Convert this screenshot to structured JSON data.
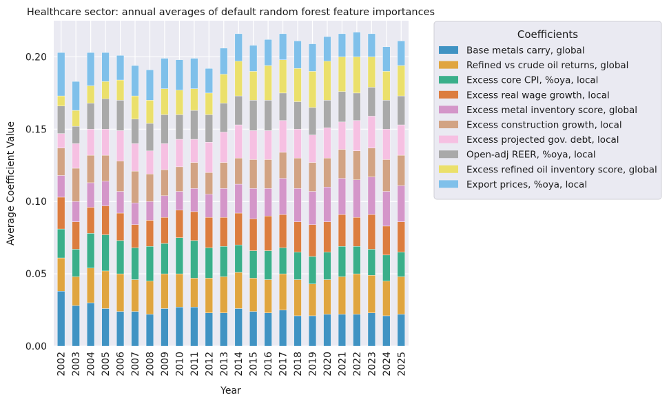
{
  "chart_data": {
    "type": "bar",
    "stacked": true,
    "title": "Healthcare sector: annual averages of default random forest feature importances",
    "xlabel": "Year",
    "ylabel": "Average Coefficient Value",
    "ylim": [
      0,
      0.225
    ],
    "yticks": [
      0.0,
      0.05,
      0.1,
      0.15,
      0.2
    ],
    "ytick_labels": [
      "0.00",
      "0.05",
      "0.10",
      "0.15",
      "0.20"
    ],
    "grid": true,
    "legend_title": "Coefficients",
    "legend_position": "outside-right",
    "categories": [
      "2002",
      "2003",
      "2004",
      "2005",
      "2006",
      "2007",
      "2008",
      "2009",
      "2010",
      "2011",
      "2012",
      "2013",
      "2014",
      "2015",
      "2016",
      "2017",
      "2018",
      "2019",
      "2020",
      "2021",
      "2022",
      "2023",
      "2024",
      "2025"
    ],
    "series": [
      {
        "name": "Base metals carry, global",
        "color": "#4093c3",
        "values": [
          0.038,
          0.028,
          0.03,
          0.026,
          0.024,
          0.024,
          0.022,
          0.026,
          0.027,
          0.027,
          0.023,
          0.023,
          0.026,
          0.024,
          0.023,
          0.025,
          0.021,
          0.021,
          0.022,
          0.022,
          0.022,
          0.023,
          0.021,
          0.022
        ]
      },
      {
        "name": "Refined vs crude oil returns, global",
        "color": "#e0a53f",
        "values": [
          0.023,
          0.02,
          0.024,
          0.026,
          0.026,
          0.022,
          0.023,
          0.024,
          0.023,
          0.02,
          0.024,
          0.025,
          0.025,
          0.023,
          0.023,
          0.025,
          0.025,
          0.022,
          0.024,
          0.026,
          0.028,
          0.026,
          0.024,
          0.026
        ]
      },
      {
        "name": "Excess core CPI, %oya, local",
        "color": "#3aaf8a",
        "values": [
          0.02,
          0.019,
          0.024,
          0.025,
          0.023,
          0.022,
          0.024,
          0.021,
          0.025,
          0.026,
          0.021,
          0.021,
          0.019,
          0.019,
          0.02,
          0.018,
          0.019,
          0.019,
          0.019,
          0.021,
          0.019,
          0.018,
          0.018,
          0.017
        ]
      },
      {
        "name": "Excess real wage growth, local",
        "color": "#dc7d3f",
        "values": [
          0.022,
          0.019,
          0.018,
          0.02,
          0.019,
          0.016,
          0.018,
          0.018,
          0.019,
          0.02,
          0.021,
          0.02,
          0.022,
          0.022,
          0.024,
          0.023,
          0.021,
          0.022,
          0.021,
          0.022,
          0.02,
          0.024,
          0.02,
          0.021
        ]
      },
      {
        "name": "Excess metal inventory score, global",
        "color": "#d496c9",
        "values": [
          0.015,
          0.014,
          0.017,
          0.017,
          0.015,
          0.015,
          0.013,
          0.015,
          0.013,
          0.016,
          0.016,
          0.02,
          0.02,
          0.021,
          0.019,
          0.025,
          0.023,
          0.023,
          0.024,
          0.025,
          0.026,
          0.026,
          0.024,
          0.025
        ]
      },
      {
        "name": "Excess construction growth, local",
        "color": "#d2a383",
        "values": [
          0.019,
          0.023,
          0.019,
          0.018,
          0.021,
          0.022,
          0.019,
          0.018,
          0.017,
          0.018,
          0.015,
          0.018,
          0.018,
          0.02,
          0.02,
          0.018,
          0.021,
          0.02,
          0.02,
          0.02,
          0.02,
          0.02,
          0.022,
          0.021
        ]
      },
      {
        "name": "Excess projected gov. debt, local",
        "color": "#f6c0e2",
        "values": [
          0.01,
          0.017,
          0.018,
          0.018,
          0.021,
          0.019,
          0.016,
          0.018,
          0.019,
          0.016,
          0.021,
          0.021,
          0.023,
          0.02,
          0.02,
          0.022,
          0.02,
          0.019,
          0.021,
          0.019,
          0.021,
          0.022,
          0.021,
          0.021
        ]
      },
      {
        "name": "Open-adj REER, %oya, local",
        "color": "#a9a9a9",
        "values": [
          0.019,
          0.012,
          0.018,
          0.021,
          0.021,
          0.017,
          0.019,
          0.02,
          0.017,
          0.02,
          0.019,
          0.02,
          0.02,
          0.021,
          0.021,
          0.019,
          0.019,
          0.019,
          0.019,
          0.021,
          0.019,
          0.02,
          0.02,
          0.02
        ]
      },
      {
        "name": "Excess refined oil inventory score, global",
        "color": "#ebe06b",
        "values": [
          0.007,
          0.011,
          0.012,
          0.012,
          0.014,
          0.016,
          0.016,
          0.018,
          0.017,
          0.015,
          0.015,
          0.02,
          0.024,
          0.02,
          0.024,
          0.023,
          0.023,
          0.025,
          0.027,
          0.024,
          0.025,
          0.021,
          0.02,
          0.021
        ]
      },
      {
        "name": "Export prices, %oya, local",
        "color": "#7fc0ea",
        "values": [
          0.03,
          0.02,
          0.023,
          0.02,
          0.017,
          0.021,
          0.021,
          0.021,
          0.021,
          0.021,
          0.017,
          0.018,
          0.019,
          0.018,
          0.018,
          0.018,
          0.019,
          0.019,
          0.017,
          0.016,
          0.017,
          0.016,
          0.017,
          0.017
        ]
      }
    ]
  }
}
